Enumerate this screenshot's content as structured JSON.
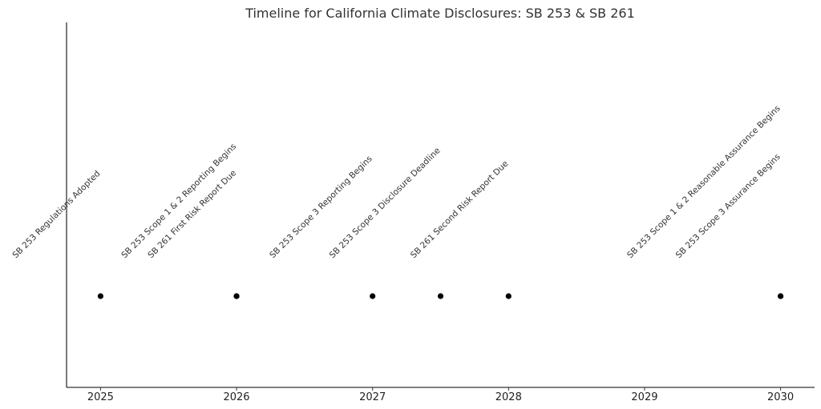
{
  "chart_data": {
    "type": "scatter",
    "title": "Timeline for California Climate Disclosures: SB 253 & SB 261",
    "xlabel": "",
    "ylabel": "",
    "xlim": [
      2024.75,
      2030.25
    ],
    "x_ticks": [
      "2025",
      "2026",
      "2027",
      "2028",
      "2029",
      "2030"
    ],
    "grid": false,
    "events": [
      {
        "x": 2025.0,
        "label": "SB 253 Regulations Adopted"
      },
      {
        "x": 2026.0,
        "label": "SB 253 Scope 1 & 2 Reporting Begins"
      },
      {
        "x": 2026.0,
        "label": "SB 261 First Risk Report Due"
      },
      {
        "x": 2027.0,
        "label": "SB 253 Scope 3 Reporting Begins"
      },
      {
        "x": 2027.5,
        "label": "SB 253 Scope 3 Disclosure Deadline"
      },
      {
        "x": 2028.0,
        "label": "SB 261 Second Risk Report Due"
      },
      {
        "x": 2030.0,
        "label": "SB 253 Scope 1 & 2 Reasonable Assurance Begins"
      },
      {
        "x": 2030.0,
        "label": "SB 253 Scope 3 Assurance Begins"
      }
    ]
  }
}
